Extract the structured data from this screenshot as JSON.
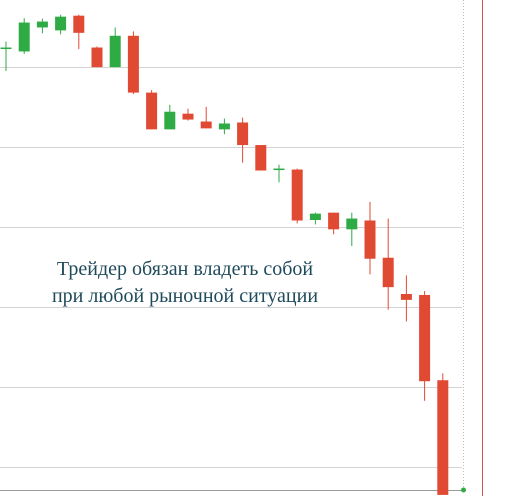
{
  "caption": {
    "line1": "Трейдер обязан владеть собой",
    "line2": "при любой рыночной ситуации"
  },
  "colors": {
    "bullish": "#2eab45",
    "bearish": "#e04a32",
    "grid": "#d3d3d3",
    "marker_line": "#c95a4a",
    "caption_text": "#1f4a5c",
    "last_price_dot": "#2eab45"
  },
  "chart_data": {
    "type": "candlestick",
    "title": "",
    "xlabel": "",
    "ylabel": "",
    "grid": true,
    "note": "price axis has no visible tick labels; values are in relative price units (0 = bottom of visible range, 100 = top)",
    "ylim": [
      0,
      100
    ],
    "candles": [
      {
        "o": 90.1,
        "h": 91.5,
        "l": 85.5,
        "c": 90.3
      },
      {
        "o": 89.5,
        "h": 96.3,
        "l": 89.0,
        "c": 95.4
      },
      {
        "o": 94.4,
        "h": 96.2,
        "l": 93.2,
        "c": 95.6
      },
      {
        "o": 93.8,
        "h": 97.0,
        "l": 93.0,
        "c": 96.6
      },
      {
        "o": 96.8,
        "h": 97.0,
        "l": 90.0,
        "c": 93.3
      },
      {
        "o": 90.3,
        "h": 90.5,
        "l": 86.3,
        "c": 86.3
      },
      {
        "o": 86.3,
        "h": 94.4,
        "l": 86.3,
        "c": 92.7
      },
      {
        "o": 92.7,
        "h": 93.6,
        "l": 80.8,
        "c": 81.1
      },
      {
        "o": 81.1,
        "h": 81.6,
        "l": 73.6,
        "c": 73.6
      },
      {
        "o": 73.6,
        "h": 78.6,
        "l": 73.6,
        "c": 77.2
      },
      {
        "o": 76.8,
        "h": 77.8,
        "l": 75.4,
        "c": 75.6
      },
      {
        "o": 75.2,
        "h": 78.2,
        "l": 73.8,
        "c": 73.8
      },
      {
        "o": 73.6,
        "h": 75.8,
        "l": 72.6,
        "c": 74.8
      },
      {
        "o": 75.0,
        "h": 76.0,
        "l": 66.8,
        "c": 70.4
      },
      {
        "o": 70.4,
        "h": 70.4,
        "l": 65.2,
        "c": 65.2
      },
      {
        "o": 65.4,
        "h": 66.4,
        "l": 62.8,
        "c": 65.6
      },
      {
        "o": 65.4,
        "h": 65.6,
        "l": 54.4,
        "c": 55.0
      },
      {
        "o": 55.1,
        "h": 56.6,
        "l": 54.2,
        "c": 56.4
      },
      {
        "o": 56.6,
        "h": 56.6,
        "l": 52.2,
        "c": 53.2
      },
      {
        "o": 53.2,
        "h": 56.6,
        "l": 49.8,
        "c": 55.4
      },
      {
        "o": 55.0,
        "h": 58.8,
        "l": 44.0,
        "c": 47.2
      },
      {
        "o": 47.4,
        "h": 55.4,
        "l": 36.8,
        "c": 41.4
      },
      {
        "o": 40.0,
        "h": 43.8,
        "l": 34.4,
        "c": 38.8
      },
      {
        "o": 39.8,
        "h": 40.6,
        "l": 18.2,
        "c": 22.2
      },
      {
        "o": 22.4,
        "h": 23.8,
        "l": -1.0,
        "c": -1.0
      }
    ]
  }
}
